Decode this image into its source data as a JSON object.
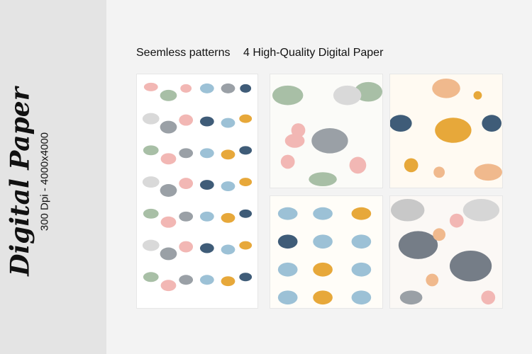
{
  "sidebar": {
    "title": "Digital Paper",
    "spec": "300 Dpi - 4000x4000"
  },
  "header": {
    "left": "Seemless patterns",
    "right": "4 High-Quality Digital Paper"
  },
  "palette": {
    "pink": "#f2b7b4",
    "sage": "#a8bfa6",
    "gray": "#9aa0a6",
    "navy": "#3f5c78",
    "mustard": "#e7a83a",
    "lightblue": "#9cc1d6",
    "peach": "#f0b98d"
  },
  "tiles": [
    {
      "name": "strip-pattern",
      "icon": "elephant-floral-strip"
    },
    {
      "name": "pattern-1",
      "icon": "gray-elephant-pink-flowers"
    },
    {
      "name": "pattern-2",
      "icon": "mustard-navy-elephants"
    },
    {
      "name": "pattern-3",
      "icon": "blue-mustard-elephants"
    },
    {
      "name": "pattern-4",
      "icon": "gray-elephants-peach-flowers"
    }
  ]
}
